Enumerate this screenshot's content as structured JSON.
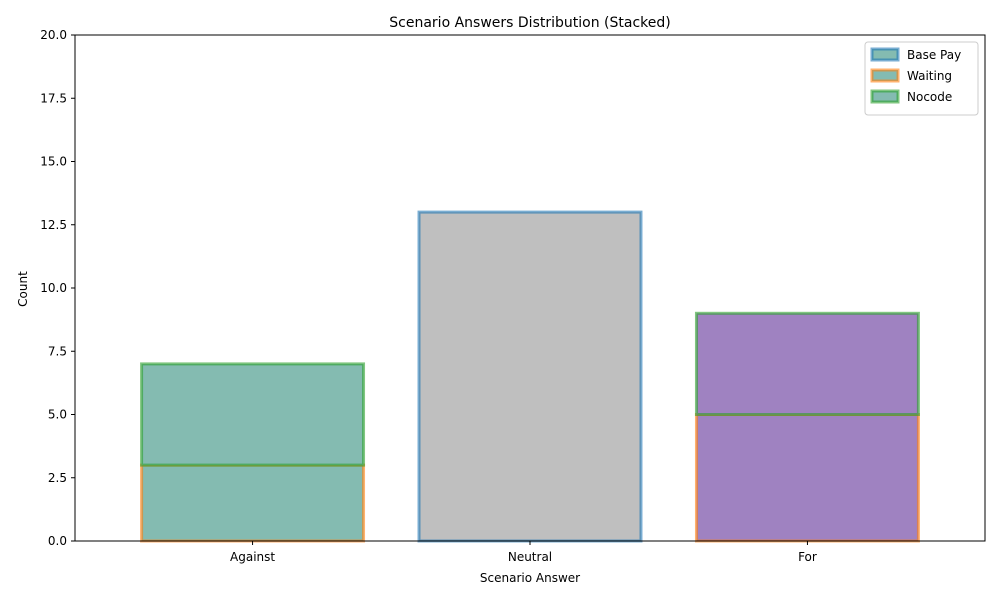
{
  "chart_data": {
    "type": "bar",
    "stacked": true,
    "title": "Scenario Answers Distribution (Stacked)",
    "xlabel": "Scenario Answer",
    "ylabel": "Count",
    "categories": [
      "Against",
      "Neutral",
      "For"
    ],
    "ylim": [
      0,
      20
    ],
    "yticks": [
      0.0,
      2.5,
      5.0,
      7.5,
      10.0,
      12.5,
      15.0,
      17.5,
      20.0
    ],
    "ytick_labels": [
      "0.0",
      "2.5",
      "5.0",
      "7.5",
      "10.0",
      "12.5",
      "15.0",
      "17.5",
      "20.0"
    ],
    "series": [
      {
        "name": "Base Pay",
        "values": [
          0,
          13,
          0
        ],
        "edge_color": "#1f77b4"
      },
      {
        "name": "Waiting",
        "values": [
          3,
          0,
          5
        ],
        "edge_color": "#ff7f0e"
      },
      {
        "name": "Nocode",
        "values": [
          4,
          0,
          4
        ],
        "edge_color": "#2ca02c"
      }
    ],
    "category_fill_colors": [
      "#84bbb1",
      "#bfbfbf",
      "#9f82c1"
    ],
    "legend_fill": "#84bbb1",
    "legend_position": "upper right",
    "grid": false
  }
}
